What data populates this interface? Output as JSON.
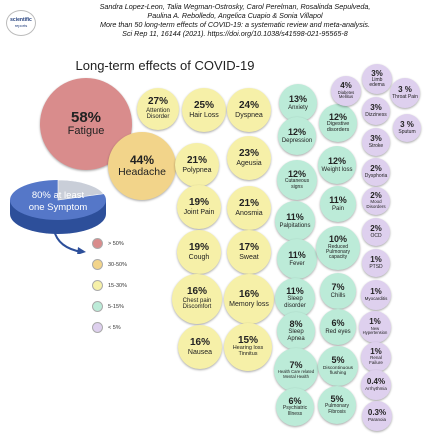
{
  "header": {
    "logo_line1": "scientific",
    "logo_line2": "reports",
    "citation_line1": "Sandra Lopez-Leon, Talia Wegman-Ostrosky, Carol Perelman, Rosalinda Sepulveda,",
    "citation_line2": "Paulina A. Rebolledo, Angelica Cuapio & Sonia Villapol",
    "citation_line3": "More than 50 long-term effects of COVID-19: a systematic review and meta-analysis.",
    "citation_line4": "Sci Rep 11, 16144 (2021). https://doi.org/10.1038/s41598-021-95565-8"
  },
  "title": "Long-term effects of COVID-19",
  "pie": {
    "text_line1": "80% at least",
    "text_line2": "one Symptom",
    "value": 80
  },
  "legend": [
    {
      "label": "> 50%",
      "color": "#d98c8c"
    },
    {
      "label": "30-50%",
      "color": "#f2d48a"
    },
    {
      "label": "15-30%",
      "color": "#f6f0a8"
    },
    {
      "label": "5-15%",
      "color": "#bcebd8"
    },
    {
      "label": "< 5%",
      "color": "#ded0ee"
    }
  ],
  "colors": {
    "gt50": "#d98c8c",
    "c30_50": "#f2d48a",
    "c15_30": "#f6f0a8",
    "c5_15": "#bcebd8",
    "lt5": "#ded0ee",
    "pie_top": "#5577c8",
    "pie_side": "#2d4f9a"
  },
  "effects": [
    {
      "pct": "58%",
      "label": "Fatigue"
    },
    {
      "pct": "44%",
      "label": "Headache"
    },
    {
      "pct": "27%",
      "label": "Attention Disorder"
    },
    {
      "pct": "25%",
      "label": "Hair Loss"
    },
    {
      "pct": "24%",
      "label": "Dyspnea"
    },
    {
      "pct": "21%",
      "label": "Polypnea"
    },
    {
      "pct": "23%",
      "label": "Ageusia"
    },
    {
      "pct": "19%",
      "label": "Joint Pain"
    },
    {
      "pct": "21%",
      "label": "Anosmia"
    },
    {
      "pct": "19%",
      "label": "Cough"
    },
    {
      "pct": "17%",
      "label": "Sweat"
    },
    {
      "pct": "16%",
      "label": "Chest pain Discomfort"
    },
    {
      "pct": "16%",
      "label": "Memory loss"
    },
    {
      "pct": "16%",
      "label": "Nausea"
    },
    {
      "pct": "15%",
      "label": "Hearing loss Tinnitus"
    },
    {
      "pct": "13%",
      "label": "Anxiety"
    },
    {
      "pct": "12%",
      "label": "Depression"
    },
    {
      "pct": "12%",
      "label": "Digestive disorders"
    },
    {
      "pct": "12%",
      "label": "Cutaneous signs"
    },
    {
      "pct": "12%",
      "label": "Weight loss"
    },
    {
      "pct": "11%",
      "label": "Palpitations"
    },
    {
      "pct": "11%",
      "label": "Pain"
    },
    {
      "pct": "11%",
      "label": "Fever"
    },
    {
      "pct": "10%",
      "label": "Reduced Pulmonary capacity"
    },
    {
      "pct": "11%",
      "label": "Sleep disorder"
    },
    {
      "pct": "7%",
      "label": "Chills"
    },
    {
      "pct": "8%",
      "label": "Sleep Apnea"
    },
    {
      "pct": "6%",
      "label": "Red eyes"
    },
    {
      "pct": "7%",
      "label": "Health Care related Mental Health"
    },
    {
      "pct": "5%",
      "label": "Discontinuous flushing"
    },
    {
      "pct": "6%",
      "label": "Psychiatric Illness"
    },
    {
      "pct": "5%",
      "label": "Pulmonary Fibrosis"
    },
    {
      "pct": "4%",
      "label": "Diabetes Mellitus"
    },
    {
      "pct": "3%",
      "label": "Limb edema"
    },
    {
      "pct": "3 %",
      "label": "Throat Pain"
    },
    {
      "pct": "3%",
      "label": "Dizziness"
    },
    {
      "pct": "3%",
      "label": "Stroke"
    },
    {
      "pct": "3 %",
      "label": "Sputum"
    },
    {
      "pct": "2%",
      "label": "Dysphoria"
    },
    {
      "pct": "2%",
      "label": "Mood Disorders"
    },
    {
      "pct": "2%",
      "label": "OCD"
    },
    {
      "pct": "1%",
      "label": "PTSD"
    },
    {
      "pct": "1%",
      "label": "Myocarditis"
    },
    {
      "pct": "1%",
      "label": "New Hypertension"
    },
    {
      "pct": "1%",
      "label": "Renal Failure"
    },
    {
      "pct": "0.4%",
      "label": "Arrhythmia"
    },
    {
      "pct": "0.3%",
      "label": "Paranoia"
    }
  ]
}
